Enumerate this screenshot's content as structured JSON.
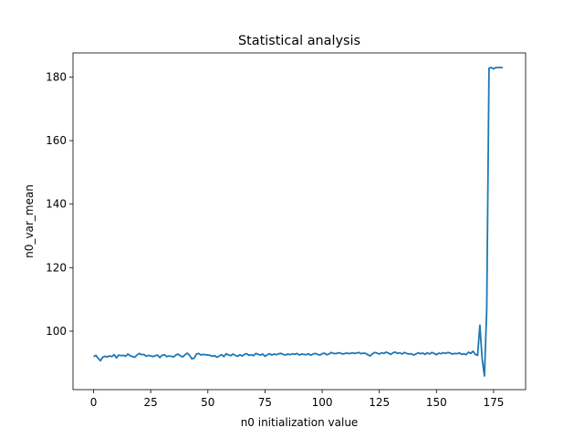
{
  "chart_data": {
    "type": "line",
    "title": "Statistical analysis",
    "xlabel": "n0 initialization value",
    "ylabel": "n0_var_mean",
    "xlim": [
      -9,
      189
    ],
    "ylim": [
      81.6,
      187.6
    ],
    "xticks": [
      0,
      25,
      50,
      75,
      100,
      125,
      150,
      175
    ],
    "yticks": [
      100,
      120,
      140,
      160,
      180
    ],
    "grid": false,
    "series_color": "#1f77b4",
    "series": [
      {
        "x": [
          0,
          1,
          2,
          3,
          4,
          5,
          6,
          7,
          8,
          9,
          10,
          11,
          12,
          13,
          14,
          15,
          16,
          17,
          18,
          19,
          20,
          21,
          22,
          23,
          24,
          25,
          26,
          27,
          28,
          29,
          30,
          31,
          32,
          33,
          34,
          35,
          36,
          37,
          38,
          39,
          40,
          41,
          42,
          43,
          44,
          45,
          46,
          47,
          48,
          49,
          50,
          51,
          52,
          53,
          54,
          55,
          56,
          57,
          58,
          59,
          60,
          61,
          62,
          63,
          64,
          65,
          66,
          67,
          68,
          69,
          70,
          71,
          72,
          73,
          74,
          75,
          76,
          77,
          78,
          79,
          80,
          81,
          82,
          83,
          84,
          85,
          86,
          87,
          88,
          89,
          90,
          91,
          92,
          93,
          94,
          95,
          96,
          97,
          98,
          99,
          100,
          101,
          102,
          103,
          104,
          105,
          106,
          107,
          108,
          109,
          110,
          111,
          112,
          113,
          114,
          115,
          116,
          117,
          118,
          119,
          120,
          121,
          122,
          123,
          124,
          125,
          126,
          127,
          128,
          129,
          130,
          131,
          132,
          133,
          134,
          135,
          136,
          137,
          138,
          139,
          140,
          141,
          142,
          143,
          144,
          145,
          146,
          147,
          148,
          149,
          150,
          151,
          152,
          153,
          154,
          155,
          156,
          157,
          158,
          159,
          160,
          161,
          162,
          163,
          164,
          165,
          166,
          167,
          168,
          169,
          170,
          171,
          172,
          173,
          174,
          175,
          176,
          177,
          178,
          179
        ],
        "y": [
          92.0,
          92.4,
          91.5,
          90.7,
          91.8,
          92.1,
          91.9,
          92.2,
          92.0,
          92.6,
          91.6,
          92.5,
          92.3,
          92.4,
          92.1,
          92.8,
          92.3,
          92.0,
          91.8,
          92.5,
          93.0,
          92.6,
          92.7,
          92.1,
          92.4,
          92.2,
          92.0,
          92.3,
          92.5,
          91.7,
          92.4,
          92.6,
          92.0,
          92.2,
          92.1,
          91.9,
          92.5,
          92.8,
          92.2,
          91.9,
          92.6,
          93.1,
          92.4,
          91.3,
          91.5,
          92.8,
          93.0,
          92.5,
          92.7,
          92.6,
          92.5,
          92.4,
          92.1,
          92.3,
          91.8,
          92.2,
          92.6,
          92.0,
          92.9,
          92.5,
          92.3,
          92.8,
          92.4,
          92.1,
          92.6,
          92.2,
          92.7,
          92.9,
          92.4,
          92.6,
          92.3,
          93.0,
          92.7,
          92.5,
          92.8,
          92.1,
          92.6,
          92.9,
          92.5,
          92.8,
          92.6,
          92.9,
          93.0,
          92.7,
          92.5,
          92.8,
          92.6,
          92.9,
          92.7,
          93.0,
          92.5,
          92.8,
          92.7,
          92.6,
          92.9,
          92.4,
          92.8,
          93.0,
          92.7,
          92.5,
          92.9,
          93.1,
          92.6,
          92.8,
          93.3,
          93.0,
          92.9,
          93.2,
          93.1,
          92.8,
          93.0,
          93.1,
          92.9,
          93.2,
          93.0,
          93.1,
          93.3,
          92.9,
          93.1,
          93.0,
          92.6,
          92.2,
          92.9,
          93.3,
          93.1,
          92.8,
          93.2,
          93.0,
          93.4,
          93.1,
          92.7,
          93.2,
          93.4,
          93.0,
          93.2,
          92.8,
          93.3,
          93.0,
          92.8,
          92.9,
          92.5,
          92.8,
          93.2,
          92.9,
          93.1,
          92.7,
          93.2,
          92.8,
          93.3,
          93.0,
          92.6,
          93.1,
          92.9,
          93.2,
          93.0,
          93.3,
          93.1,
          92.8,
          93.0,
          92.9,
          93.2,
          92.7,
          92.9,
          92.6,
          93.4,
          93.0,
          93.7,
          92.7,
          92.4,
          101.9,
          91.2,
          85.9,
          107.0,
          182.8,
          183.0,
          182.6,
          183.0,
          183.0,
          183.0,
          183.0
        ]
      }
    ]
  }
}
